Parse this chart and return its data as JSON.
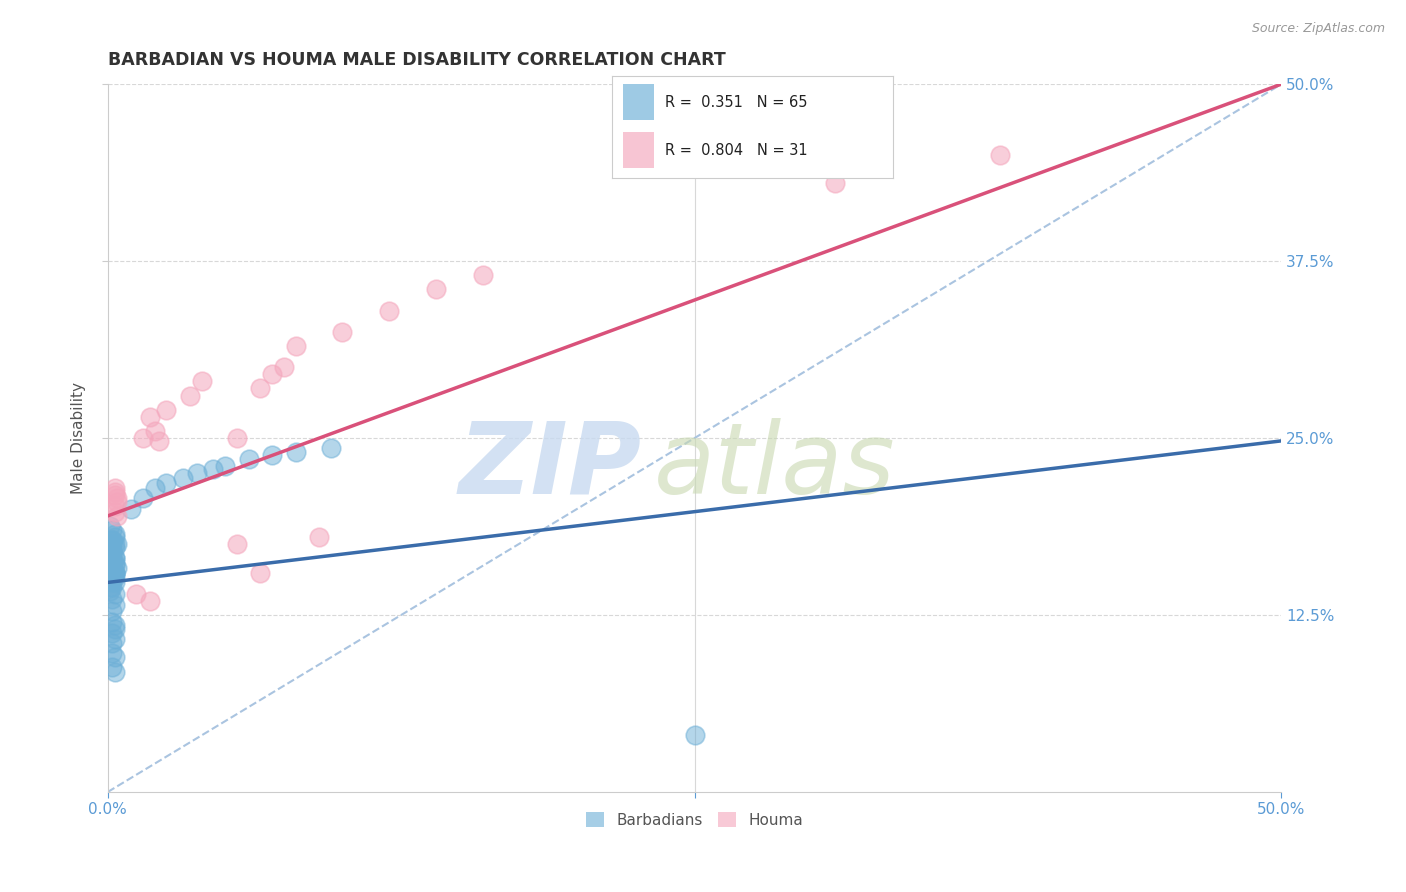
{
  "title": "BARBADIAN VS HOUMA MALE DISABILITY CORRELATION CHART",
  "source": "Source: ZipAtlas.com",
  "ylabel": "Male Disability",
  "xlim": [
    0.0,
    0.5
  ],
  "ylim": [
    0.0,
    0.5
  ],
  "ytick_labels": [
    "12.5%",
    "25.0%",
    "37.5%",
    "50.0%"
  ],
  "ytick_vals": [
    0.125,
    0.25,
    0.375,
    0.5
  ],
  "barbadian_color": "#6baed6",
  "houma_color": "#f4a6bc",
  "barbadian_R": 0.351,
  "barbadian_N": 65,
  "houma_R": 0.804,
  "houma_N": 31,
  "barbadian_line_color": "#3a6caa",
  "houma_line_color": "#d9517a",
  "diag_color": "#aac4e0",
  "grid_color": "#d8d8d8",
  "barbadian_points": [
    [
      0.002,
      0.155
    ],
    [
      0.002,
      0.148
    ],
    [
      0.003,
      0.16
    ],
    [
      0.003,
      0.155
    ],
    [
      0.002,
      0.162
    ],
    [
      0.001,
      0.158
    ],
    [
      0.003,
      0.165
    ],
    [
      0.001,
      0.153
    ],
    [
      0.002,
      0.17
    ],
    [
      0.003,
      0.152
    ],
    [
      0.001,
      0.168
    ],
    [
      0.003,
      0.175
    ],
    [
      0.002,
      0.145
    ],
    [
      0.002,
      0.178
    ],
    [
      0.003,
      0.172
    ],
    [
      0.001,
      0.15
    ],
    [
      0.001,
      0.16
    ],
    [
      0.002,
      0.185
    ],
    [
      0.003,
      0.155
    ],
    [
      0.003,
      0.148
    ],
    [
      0.004,
      0.158
    ],
    [
      0.001,
      0.142
    ],
    [
      0.002,
      0.165
    ],
    [
      0.003,
      0.18
    ],
    [
      0.002,
      0.158
    ],
    [
      0.002,
      0.172
    ],
    [
      0.003,
      0.162
    ],
    [
      0.001,
      0.175
    ],
    [
      0.001,
      0.188
    ],
    [
      0.003,
      0.155
    ],
    [
      0.002,
      0.168
    ],
    [
      0.002,
      0.178
    ],
    [
      0.003,
      0.182
    ],
    [
      0.001,
      0.145
    ],
    [
      0.002,
      0.152
    ],
    [
      0.004,
      0.175
    ],
    [
      0.002,
      0.175
    ],
    [
      0.003,
      0.165
    ],
    [
      0.003,
      0.14
    ],
    [
      0.002,
      0.136
    ],
    [
      0.003,
      0.132
    ],
    [
      0.002,
      0.128
    ],
    [
      0.002,
      0.12
    ],
    [
      0.003,
      0.118
    ],
    [
      0.002,
      0.112
    ],
    [
      0.003,
      0.115
    ],
    [
      0.003,
      0.108
    ],
    [
      0.002,
      0.105
    ],
    [
      0.002,
      0.098
    ],
    [
      0.003,
      0.095
    ],
    [
      0.002,
      0.088
    ],
    [
      0.003,
      0.085
    ],
    [
      0.01,
      0.2
    ],
    [
      0.015,
      0.208
    ],
    [
      0.02,
      0.215
    ],
    [
      0.025,
      0.218
    ],
    [
      0.032,
      0.222
    ],
    [
      0.038,
      0.225
    ],
    [
      0.045,
      0.228
    ],
    [
      0.05,
      0.23
    ],
    [
      0.06,
      0.235
    ],
    [
      0.07,
      0.238
    ],
    [
      0.08,
      0.24
    ],
    [
      0.095,
      0.243
    ],
    [
      0.25,
      0.04
    ]
  ],
  "houma_points": [
    [
      0.003,
      0.21
    ],
    [
      0.004,
      0.205
    ],
    [
      0.003,
      0.215
    ],
    [
      0.003,
      0.198
    ],
    [
      0.004,
      0.208
    ],
    [
      0.003,
      0.202
    ],
    [
      0.004,
      0.195
    ],
    [
      0.003,
      0.212
    ],
    [
      0.02,
      0.255
    ],
    [
      0.025,
      0.27
    ],
    [
      0.035,
      0.28
    ],
    [
      0.04,
      0.29
    ],
    [
      0.018,
      0.265
    ],
    [
      0.065,
      0.285
    ],
    [
      0.07,
      0.295
    ],
    [
      0.015,
      0.25
    ],
    [
      0.075,
      0.3
    ],
    [
      0.08,
      0.315
    ],
    [
      0.1,
      0.325
    ],
    [
      0.12,
      0.34
    ],
    [
      0.14,
      0.355
    ],
    [
      0.16,
      0.365
    ],
    [
      0.012,
      0.14
    ],
    [
      0.018,
      0.135
    ],
    [
      0.31,
      0.43
    ],
    [
      0.38,
      0.45
    ],
    [
      0.055,
      0.175
    ],
    [
      0.055,
      0.25
    ],
    [
      0.065,
      0.155
    ],
    [
      0.022,
      0.248
    ],
    [
      0.09,
      0.18
    ]
  ]
}
